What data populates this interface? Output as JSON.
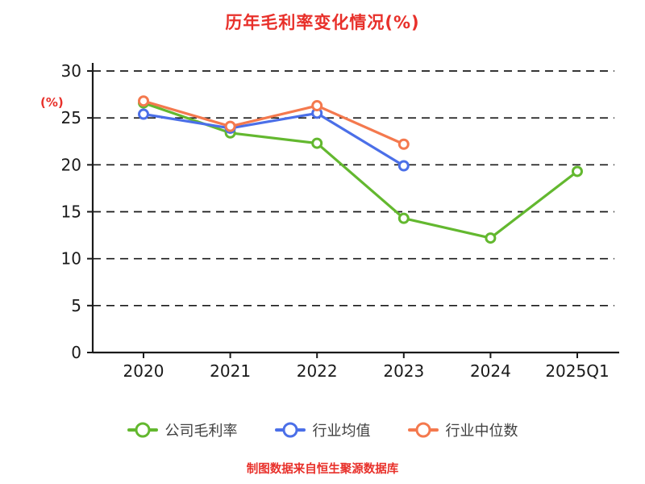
{
  "title": "历年毛利率变化情况(%)",
  "footer": "制图数据来自恒生聚源数据库",
  "colors": {
    "title_red": "#e8302a",
    "axis_black": "#1a1a1a",
    "company_green": "#63b82f",
    "industry_avg_blue": "#4b6fe8",
    "industry_median_orange": "#f4794e"
  },
  "chart_data": {
    "type": "line",
    "title": "历年毛利率变化情况(%)",
    "ylabel": "(%)",
    "categories": [
      "2020",
      "2021",
      "2022",
      "2023",
      "2024",
      "2025Q1"
    ],
    "series": [
      {
        "name": "公司毛利率",
        "color": "#63b82f",
        "values": [
          26.6,
          23.4,
          22.3,
          14.3,
          12.2,
          19.3
        ]
      },
      {
        "name": "行业均值",
        "color": "#4b6fe8",
        "values": [
          25.4,
          23.9,
          25.5,
          19.9,
          null,
          null
        ]
      },
      {
        "name": "行业中位数",
        "color": "#f4794e",
        "values": [
          26.8,
          24.1,
          26.3,
          22.2,
          null,
          null
        ]
      }
    ],
    "ylim": [
      0,
      30
    ],
    "yticks": [
      0,
      5,
      10,
      15,
      20,
      25,
      30
    ],
    "grid": "horizontal-dashed",
    "legend_position": "bottom",
    "source_note": "制图数据来自恒生聚源数据库"
  }
}
